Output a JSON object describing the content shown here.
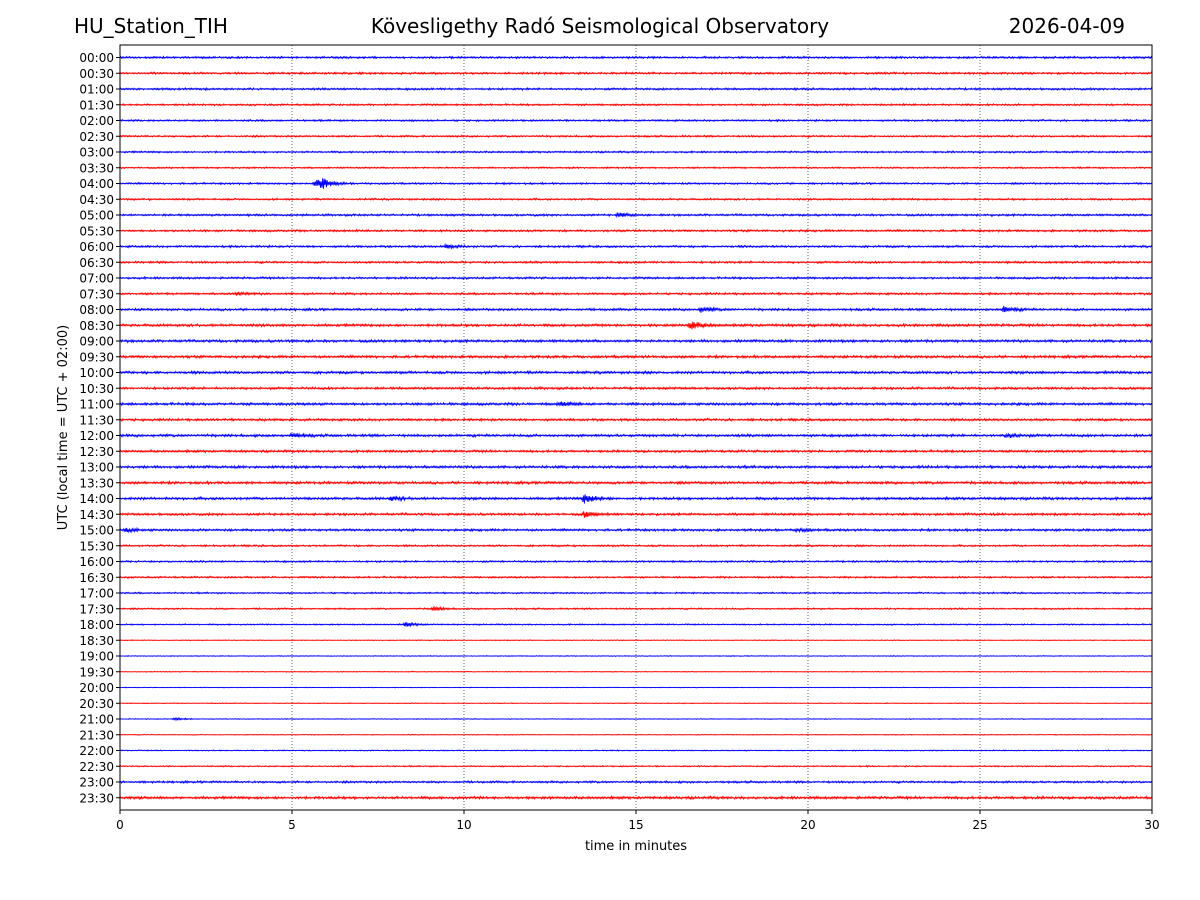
{
  "header": {
    "station": "HU_Station_TIH",
    "observatory": "Kövesligethy Radó Seismological Observatory",
    "date": "2026-04-09"
  },
  "chart_data": {
    "type": "line",
    "title": "Kövesligethy Radó Seismological Observatory",
    "xlabel": "time in minutes",
    "ylabel": "UTC (local time = UTC + 02:00)",
    "xlim": [
      0,
      30
    ],
    "xticks": [
      0,
      5,
      10,
      15,
      20,
      25,
      30
    ],
    "grid": "vertical dotted at x ticks",
    "colors": [
      "#0000ff",
      "#ff0000"
    ],
    "rows": [
      {
        "label": "00:00",
        "amp": 0.8
      },
      {
        "label": "00:30",
        "amp": 0.8
      },
      {
        "label": "01:00",
        "amp": 0.8
      },
      {
        "label": "01:30",
        "amp": 0.7
      },
      {
        "label": "02:00",
        "amp": 0.7
      },
      {
        "label": "02:30",
        "amp": 0.7
      },
      {
        "label": "03:00",
        "amp": 0.7
      },
      {
        "label": "03:30",
        "amp": 0.6
      },
      {
        "label": "04:00",
        "amp": 0.7,
        "events": [
          {
            "x": 5.7,
            "amp": 4.5
          },
          {
            "x": 5.9,
            "amp": 3
          }
        ]
      },
      {
        "label": "04:30",
        "amp": 0.7
      },
      {
        "label": "05:00",
        "amp": 0.8,
        "events": [
          {
            "x": 14.5,
            "amp": 2
          }
        ]
      },
      {
        "label": "05:30",
        "amp": 0.8
      },
      {
        "label": "06:00",
        "amp": 0.8,
        "events": [
          {
            "x": 9.5,
            "amp": 2
          }
        ]
      },
      {
        "label": "06:30",
        "amp": 0.8
      },
      {
        "label": "07:00",
        "amp": 0.8
      },
      {
        "label": "07:30",
        "amp": 0.8,
        "events": [
          {
            "x": 3.4,
            "amp": 1.5
          }
        ]
      },
      {
        "label": "08:00",
        "amp": 0.9,
        "events": [
          {
            "x": 16.9,
            "amp": 2.5
          },
          {
            "x": 25.7,
            "amp": 3
          }
        ]
      },
      {
        "label": "08:30",
        "amp": 1.0,
        "events": [
          {
            "x": 16.6,
            "amp": 4.5
          }
        ]
      },
      {
        "label": "09:00",
        "amp": 1.0
      },
      {
        "label": "09:30",
        "amp": 1.0
      },
      {
        "label": "10:00",
        "amp": 1.0
      },
      {
        "label": "10:30",
        "amp": 0.9
      },
      {
        "label": "11:00",
        "amp": 1.0,
        "events": [
          {
            "x": 12.8,
            "amp": 2
          }
        ]
      },
      {
        "label": "11:30",
        "amp": 0.9
      },
      {
        "label": "12:00",
        "amp": 1.0,
        "events": [
          {
            "x": 5,
            "amp": 2
          },
          {
            "x": 25.8,
            "amp": 2
          }
        ]
      },
      {
        "label": "12:30",
        "amp": 0.9
      },
      {
        "label": "13:00",
        "amp": 1.0
      },
      {
        "label": "13:30",
        "amp": 1.0
      },
      {
        "label": "14:00",
        "amp": 1.0,
        "events": [
          {
            "x": 7.9,
            "amp": 2
          },
          {
            "x": 13.5,
            "amp": 5
          }
        ]
      },
      {
        "label": "14:30",
        "amp": 0.9,
        "events": [
          {
            "x": 13.5,
            "amp": 3
          }
        ]
      },
      {
        "label": "15:00",
        "amp": 0.9,
        "events": [
          {
            "x": 0.2,
            "amp": 1.6
          },
          {
            "x": 19.7,
            "amp": 1.6
          }
        ]
      },
      {
        "label": "15:30",
        "amp": 0.7
      },
      {
        "label": "16:00",
        "amp": 0.7
      },
      {
        "label": "16:30",
        "amp": 0.7
      },
      {
        "label": "17:00",
        "amp": 0.6
      },
      {
        "label": "17:30",
        "amp": 0.6,
        "events": [
          {
            "x": 9.1,
            "amp": 2
          }
        ]
      },
      {
        "label": "18:00",
        "amp": 0.5,
        "events": [
          {
            "x": 8.3,
            "amp": 2.2
          }
        ]
      },
      {
        "label": "18:30",
        "amp": 0.3
      },
      {
        "label": "19:00",
        "amp": 0.3
      },
      {
        "label": "19:30",
        "amp": 0.3
      },
      {
        "label": "20:00",
        "amp": 0.25
      },
      {
        "label": "20:30",
        "amp": 0.3
      },
      {
        "label": "21:00",
        "amp": 0.3,
        "events": [
          {
            "x": 1.6,
            "amp": 1.5
          }
        ]
      },
      {
        "label": "21:30",
        "amp": 0.3
      },
      {
        "label": "22:00",
        "amp": 0.4
      },
      {
        "label": "22:30",
        "amp": 0.5
      },
      {
        "label": "23:00",
        "amp": 0.8
      },
      {
        "label": "23:30",
        "amp": 1.0
      }
    ]
  }
}
